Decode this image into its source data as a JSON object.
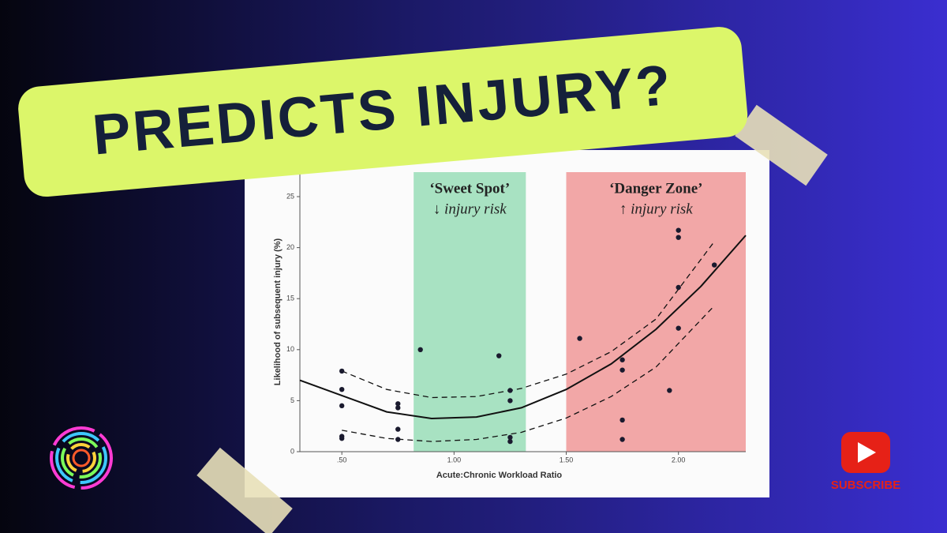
{
  "headline": "PREDICTS INJURY?",
  "subscribe": "SUBSCRIBE",
  "chart_data": {
    "type": "scatter",
    "x_label": "Acute:Chronic Workload Ratio",
    "y_label": "Likelihood of subsequent injury (%)",
    "xlim": [
      0.313,
      2.3
    ],
    "ylim": [
      0,
      27.4
    ],
    "xticks": [
      {
        "value": 0.5,
        "label": ".50"
      },
      {
        "value": 1.0,
        "label": "1.00"
      },
      {
        "value": 1.5,
        "label": "1.50"
      },
      {
        "value": 2.0,
        "label": "2.00"
      }
    ],
    "yticks": [
      0,
      5,
      10,
      15,
      20,
      25
    ],
    "bands": [
      {
        "x": [
          0.82,
          1.32
        ],
        "color": "#a8e2c2",
        "label": "‘Sweet Spot’",
        "sublabel": "↓ injury risk"
      },
      {
        "x": [
          1.5,
          2.3
        ],
        "color": "#f2a7a7",
        "label": "‘Danger Zone’",
        "sublabel": "↑ injury risk"
      }
    ],
    "points": {
      "color": "#1a1a2e",
      "x": [
        0.5,
        0.5,
        0.5,
        0.5,
        0.5,
        0.75,
        0.75,
        0.75,
        0.75,
        0.85,
        1.2,
        1.25,
        1.25,
        1.25,
        1.25,
        1.56,
        1.75,
        1.75,
        1.75,
        1.75,
        1.96,
        2.0,
        2.0,
        2.0,
        2.0,
        2.16
      ],
      "values": [
        7.9,
        6.1,
        4.5,
        1.5,
        1.3,
        4.7,
        4.3,
        2.2,
        1.2,
        10.0,
        9.4,
        6.0,
        5.0,
        1.4,
        1.0,
        11.1,
        9.0,
        8.0,
        3.1,
        1.2,
        6.0,
        21.7,
        21.0,
        16.1,
        12.1,
        18.3
      ]
    },
    "curves": [
      {
        "dashed": false,
        "x": [
          0.313,
          0.5,
          0.7,
          0.9,
          1.1,
          1.3,
          1.5,
          1.7,
          1.9,
          2.1,
          2.3
        ],
        "values": [
          7.0,
          5.5,
          3.9,
          3.25,
          3.4,
          4.3,
          6.1,
          8.6,
          12.0,
          16.2,
          21.2
        ]
      },
      {
        "dashed": true,
        "x": [
          0.5,
          0.7,
          0.9,
          1.1,
          1.3,
          1.5,
          1.7,
          1.9,
          2.16
        ],
        "values": [
          7.9,
          6.1,
          5.3,
          5.4,
          6.2,
          7.6,
          9.8,
          13.0,
          20.6
        ]
      },
      {
        "dashed": true,
        "x": [
          0.5,
          0.7,
          0.9,
          1.1,
          1.3,
          1.5,
          1.7,
          1.9,
          2.16
        ],
        "values": [
          2.1,
          1.3,
          1.0,
          1.2,
          1.9,
          3.3,
          5.4,
          8.3,
          14.3
        ]
      }
    ]
  }
}
